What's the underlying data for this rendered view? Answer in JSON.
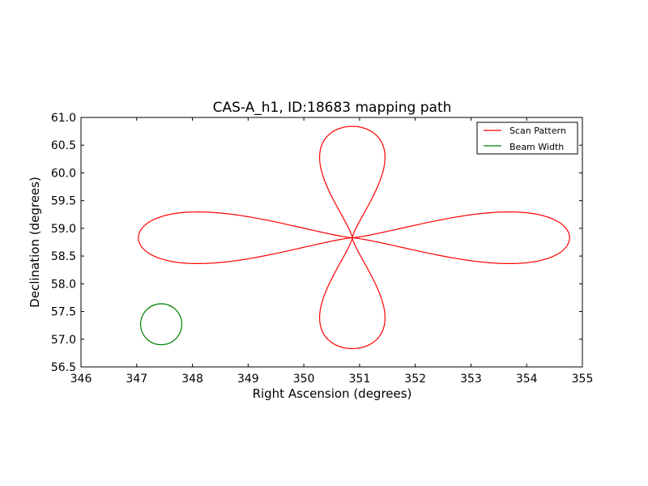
{
  "chart_data": {
    "type": "line",
    "title": "CAS-A_h1, ID:18683 mapping path",
    "xlabel": "Right Ascension (degrees)",
    "ylabel": "Declination (degrees)",
    "xlim": [
      346,
      355
    ],
    "ylim": [
      56.5,
      61.0
    ],
    "xticks": [
      "346",
      "347",
      "348",
      "349",
      "350",
      "351",
      "352",
      "353",
      "354",
      "355"
    ],
    "yticks": [
      "56.5",
      "57.0",
      "57.5",
      "58.0",
      "58.5",
      "59.0",
      "59.5",
      "60.0",
      "60.5",
      "61.0"
    ],
    "grid": false,
    "legend_position": "top-right",
    "series": [
      {
        "name": "Scan Pattern",
        "color": "#ff0000",
        "center": [
          350.87,
          58.83
        ],
        "lobes": [
          {
            "direction": "up",
            "tip": [
              350.87,
              60.84
            ],
            "half_width": 0.68
          },
          {
            "direction": "down",
            "tip": [
              350.87,
              56.83
            ],
            "half_width": 0.68
          },
          {
            "direction": "left",
            "tip": [
              347.03,
              58.83
            ],
            "half_width": 0.54
          },
          {
            "direction": "right",
            "tip": [
              354.77,
              58.83
            ],
            "half_width": 0.54
          }
        ]
      },
      {
        "name": "Beam Width",
        "color": "#008000",
        "center": [
          347.44,
          57.27
        ],
        "radius": 0.37
      }
    ]
  }
}
